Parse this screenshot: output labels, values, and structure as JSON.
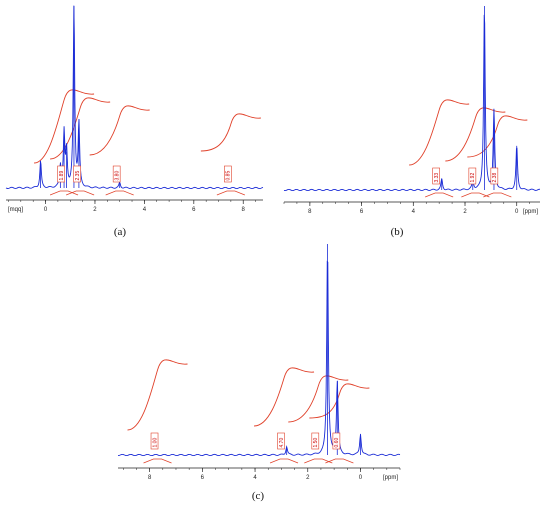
{
  "figure": {
    "panels": [
      {
        "id": "a",
        "caption": "(a)"
      },
      {
        "id": "b",
        "caption": "(b)"
      },
      {
        "id": "c",
        "caption": "(c)"
      }
    ]
  },
  "colors": {
    "spectrum": "#1a2bd6",
    "integral": "#e0412a",
    "axis": "#222222",
    "background": "#ffffff"
  },
  "chart_data": [
    {
      "id": "a",
      "type": "line",
      "caption": "(a)",
      "xlabel": "[mqq]",
      "ticks": [
        {
          "label": "0",
          "value": 0
        },
        {
          "label": "2",
          "value": 2
        },
        {
          "label": "4",
          "value": 4
        },
        {
          "label": "6",
          "value": 6
        },
        {
          "label": "8",
          "value": 8
        }
      ],
      "xlim": [
        -1.6,
        8.8
      ],
      "x_direction": "increasing-right",
      "peaks": [
        {
          "x": 0.6,
          "height": 0.12
        },
        {
          "x": 0.75,
          "height": 0.3
        },
        {
          "x": 0.85,
          "height": 0.2
        },
        {
          "x": 1.15,
          "height": 1.0
        },
        {
          "x": 1.35,
          "height": 0.35
        },
        {
          "x": 3.0,
          "height": 0.03
        },
        {
          "x": -0.2,
          "height": 0.15
        }
      ],
      "integrals": [
        {
          "x": 0.75,
          "label": "1.89"
        },
        {
          "x": 1.4,
          "label": "2.35"
        },
        {
          "x": 3.0,
          "label": "3.80"
        },
        {
          "x": 7.5,
          "label": "0.85"
        }
      ]
    },
    {
      "id": "b",
      "type": "line",
      "caption": "(b)",
      "xlabel": "[ppm]",
      "ticks": [
        {
          "label": "8",
          "value": 8
        },
        {
          "label": "6",
          "value": 6
        },
        {
          "label": "4",
          "value": 4
        },
        {
          "label": "2",
          "value": 2
        },
        {
          "label": "0",
          "value": 0
        }
      ],
      "xlim": [
        9.0,
        -0.9
      ],
      "x_direction": "decreasing-right",
      "peaks": [
        {
          "x": 2.9,
          "height": 0.06
        },
        {
          "x": 1.7,
          "height": 0.05
        },
        {
          "x": 1.25,
          "height": 1.0
        },
        {
          "x": 0.88,
          "height": 0.43
        },
        {
          "x": 0.0,
          "height": 0.24
        }
      ],
      "integrals": [
        {
          "x": 3.0,
          "label": "3.33"
        },
        {
          "x": 1.6,
          "label": "1.92"
        },
        {
          "x": 0.75,
          "label": "2.38"
        }
      ]
    },
    {
      "id": "c",
      "type": "line",
      "caption": "(c)",
      "xlabel": "[ppm]",
      "ticks": [
        {
          "label": "8",
          "value": 8
        },
        {
          "label": "6",
          "value": 6
        },
        {
          "label": "4",
          "value": 4
        },
        {
          "label": "2",
          "value": 2
        },
        {
          "label": "0",
          "value": 0
        }
      ],
      "xlim": [
        9.2,
        -1.5
      ],
      "x_direction": "decreasing-right",
      "peaks": [
        {
          "x": 2.8,
          "height": 0.04
        },
        {
          "x": 1.25,
          "height": 1.0
        },
        {
          "x": 0.88,
          "height": 0.35
        },
        {
          "x": 0.0,
          "height": 0.1
        }
      ],
      "integrals": [
        {
          "x": 7.7,
          "label": "1.00"
        },
        {
          "x": 2.9,
          "label": "4.70"
        },
        {
          "x": 1.6,
          "label": "1.50"
        },
        {
          "x": 0.8,
          "label": "0.60"
        }
      ]
    }
  ]
}
